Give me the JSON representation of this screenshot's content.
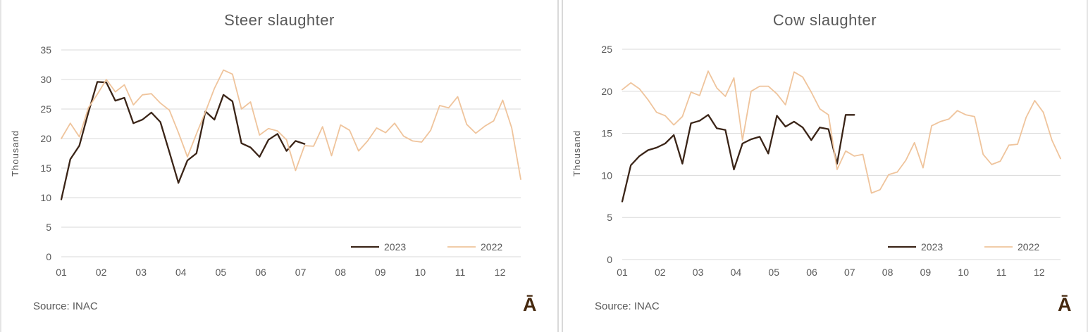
{
  "colors": {
    "series_2023": "#3a2417",
    "series_2022": "#efc49c",
    "grid": "#d9d9d9",
    "axis_text": "#595959",
    "title_text": "#595959",
    "logo_brown": "#46290f"
  },
  "chart_data": [
    {
      "type": "line",
      "title": "Steer slaughter",
      "ylabel": "Thousand",
      "ylim": [
        0,
        35
      ],
      "ytick_step": 5,
      "x_tick_labels": [
        "01",
        "02",
        "03",
        "04",
        "05",
        "06",
        "07",
        "08",
        "09",
        "10",
        "11",
        "12"
      ],
      "grid": true,
      "legend_position": "inside-bottom-right",
      "series": [
        {
          "name": "2023",
          "color_key": "series_2023",
          "values": [
            9.7,
            16.5,
            18.8,
            24.4,
            29.6,
            29.5,
            26.4,
            26.9,
            22.6,
            23.2,
            24.4,
            22.8,
            17.7,
            12.5,
            16.3,
            17.5,
            24.6,
            23.2,
            27.4,
            26.3,
            19.2,
            18.5,
            16.9,
            19.8,
            20.8,
            17.9,
            19.6,
            19.1
          ]
        },
        {
          "name": "2022",
          "color_key": "series_2022",
          "values": [
            20.0,
            22.6,
            20.3,
            25.2,
            27.5,
            30.0,
            27.9,
            29.1,
            25.7,
            27.4,
            27.6,
            26.0,
            24.8,
            21.0,
            16.9,
            20.8,
            24.5,
            28.5,
            31.6,
            30.9,
            25.0,
            26.2,
            20.6,
            21.7,
            21.3,
            19.8,
            14.6,
            18.8,
            18.7,
            22.0,
            17.1,
            22.3,
            21.4,
            17.9,
            19.6,
            21.8,
            21.0,
            22.6,
            20.4,
            19.6,
            19.4,
            21.4,
            25.6,
            25.2,
            27.1,
            22.4,
            20.9,
            22.1,
            23.0,
            26.5,
            21.8,
            13.1
          ]
        }
      ],
      "source_note": "Source: INAC",
      "logo_glyph": "Ā"
    },
    {
      "type": "line",
      "title": "Cow slaughter",
      "ylabel": "Thousand",
      "ylim": [
        0,
        25
      ],
      "ytick_step": 5,
      "x_tick_labels": [
        "01",
        "02",
        "03",
        "04",
        "05",
        "06",
        "07",
        "08",
        "09",
        "10",
        "11",
        "12"
      ],
      "grid": true,
      "legend_position": "inside-bottom-right",
      "series": [
        {
          "name": "2023",
          "color_key": "series_2023",
          "values": [
            6.9,
            11.2,
            12.3,
            13.0,
            13.3,
            13.8,
            14.8,
            11.4,
            16.2,
            16.5,
            17.2,
            15.6,
            15.4,
            10.7,
            13.8,
            14.3,
            14.6,
            12.6,
            17.1,
            15.8,
            16.4,
            15.7,
            14.2,
            15.7,
            15.5,
            11.4,
            17.2,
            17.2
          ]
        },
        {
          "name": "2022",
          "color_key": "series_2022",
          "values": [
            20.2,
            21.0,
            20.3,
            19.0,
            17.5,
            17.1,
            16.0,
            17.0,
            19.9,
            19.5,
            22.4,
            20.4,
            19.4,
            21.6,
            14.2,
            20.0,
            20.6,
            20.6,
            19.7,
            18.4,
            22.3,
            21.7,
            19.9,
            17.9,
            17.2,
            10.7,
            12.9,
            12.3,
            12.5,
            7.9,
            8.3,
            10.1,
            10.4,
            11.8,
            13.9,
            10.9,
            15.9,
            16.4,
            16.7,
            17.7,
            17.2,
            17.0,
            12.5,
            11.3,
            11.7,
            13.6,
            13.7,
            16.9,
            18.9,
            17.5,
            14.2,
            12.0
          ]
        }
      ],
      "source_note": "Source: INAC",
      "logo_glyph": "Ā"
    }
  ]
}
